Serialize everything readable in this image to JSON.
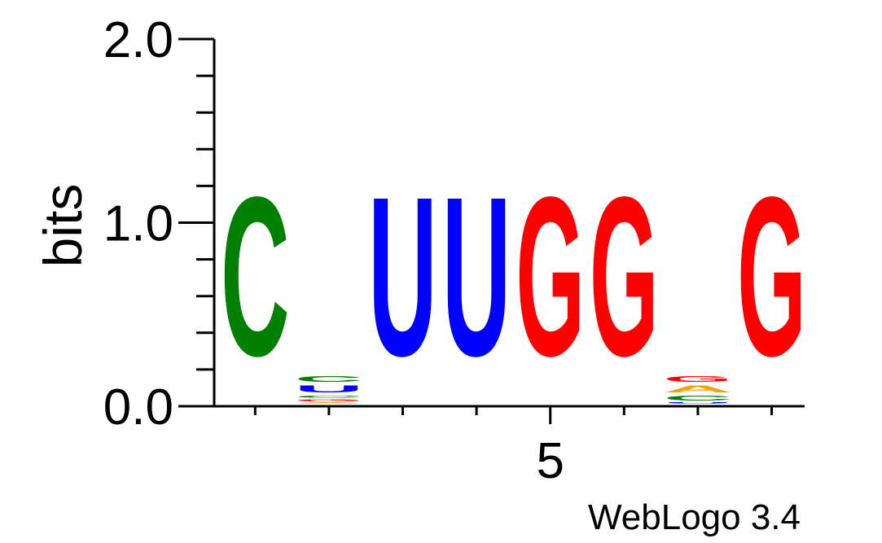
{
  "chart_data": {
    "type": "sequence-logo",
    "ylabel": "bits",
    "ylim": [
      0,
      2.0
    ],
    "y_ticks_labeled": [
      "0.0",
      "1.0",
      "2.0"
    ],
    "x_tick_label": "5",
    "x_tick_label_position": 5,
    "watermark": "WebLogo 3.4",
    "colors": {
      "A": "#f7a000",
      "C": "#008000",
      "G": "#ff0000",
      "U": "#0000ff"
    },
    "positions": [
      {
        "position": 1,
        "letters": [
          {
            "base": "C",
            "bits": 1.38
          }
        ]
      },
      {
        "position": 2,
        "letters": [
          {
            "base": "A",
            "bits": 0.01
          },
          {
            "base": "G",
            "bits": 0.02
          },
          {
            "base": "C",
            "bits": 0.02
          },
          {
            "base": "U",
            "bits": 0.06
          },
          {
            "base": "C",
            "bits": 0.05
          }
        ]
      },
      {
        "position": 3,
        "letters": [
          {
            "base": "U",
            "bits": 1.38
          }
        ]
      },
      {
        "position": 4,
        "letters": [
          {
            "base": "U",
            "bits": 1.38
          }
        ]
      },
      {
        "position": 5,
        "letters": [
          {
            "base": "G",
            "bits": 1.38
          }
        ]
      },
      {
        "position": 6,
        "letters": [
          {
            "base": "G",
            "bits": 1.38
          }
        ]
      },
      {
        "position": 7,
        "letters": [
          {
            "base": "U",
            "bits": 0.01
          },
          {
            "base": "C",
            "bits": 0.04
          },
          {
            "base": "A",
            "bits": 0.06
          },
          {
            "base": "G",
            "bits": 0.05
          }
        ]
      },
      {
        "position": 8,
        "letters": [
          {
            "base": "G",
            "bits": 1.38
          }
        ]
      }
    ]
  }
}
